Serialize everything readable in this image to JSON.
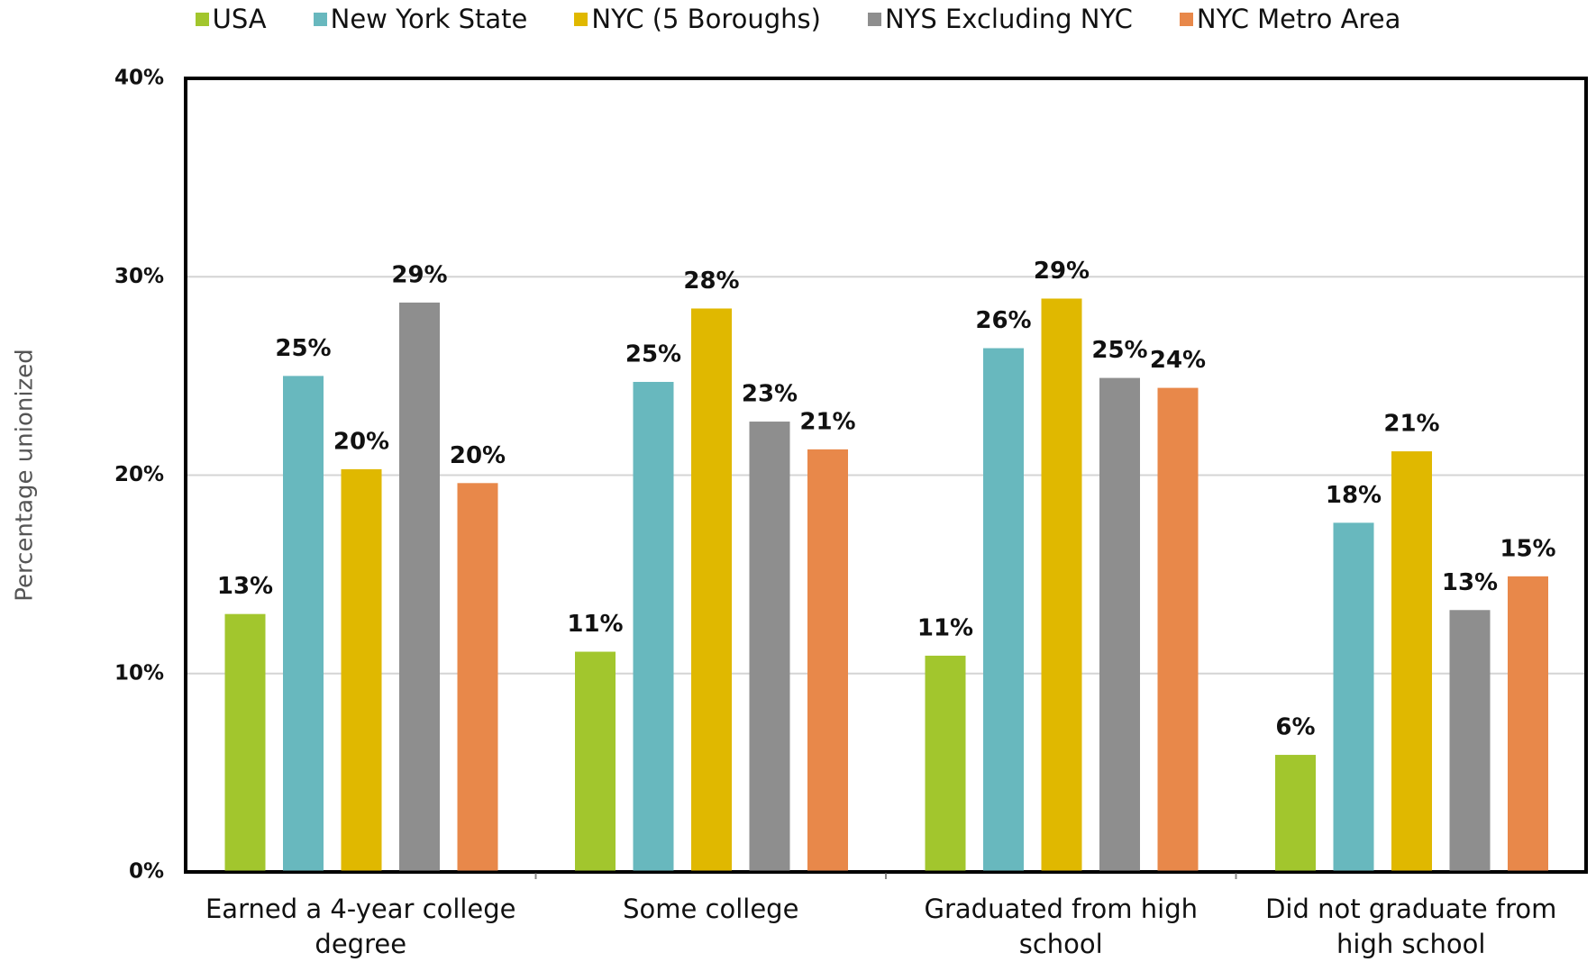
{
  "chart_data": {
    "type": "bar",
    "y_label": "Percentage unionized",
    "categories": [
      "Earned a 4-year college degree",
      "Some college",
      "Graduated from high school",
      "Did not graduate from high school"
    ],
    "series": [
      {
        "name": "USA",
        "color": "#a2c62d",
        "values": [
          13.0,
          11.1,
          10.9,
          5.9
        ],
        "value_labels": [
          "13%",
          "11%",
          "11%",
          "6%"
        ]
      },
      {
        "name": "New York State",
        "color": "#68b8be",
        "values": [
          25.0,
          24.7,
          26.4,
          17.6
        ],
        "value_labels": [
          "25%",
          "25%",
          "26%",
          "18%"
        ]
      },
      {
        "name": "NYC (5 Boroughs)",
        "color": "#e0b800",
        "values": [
          20.3,
          28.4,
          28.9,
          21.2
        ],
        "value_labels": [
          "20%",
          "28%",
          "29%",
          "21%"
        ]
      },
      {
        "name": "NYS Excluding NYC",
        "color": "#8e8e8e",
        "values": [
          28.7,
          22.7,
          24.9,
          13.2
        ],
        "value_labels": [
          "29%",
          "23%",
          "25%",
          "13%"
        ]
      },
      {
        "name": "NYC Metro Area",
        "color": "#e8884a",
        "values": [
          19.6,
          21.3,
          24.4,
          14.9
        ],
        "value_labels": [
          "20%",
          "21%",
          "24%",
          "15%"
        ]
      }
    ],
    "ylim": [
      0,
      40
    ],
    "yticks": [
      {
        "value": 0,
        "label": "0%"
      },
      {
        "value": 10,
        "label": "10%"
      },
      {
        "value": 20,
        "label": "20%"
      },
      {
        "value": 30,
        "label": "30%"
      },
      {
        "value": 40,
        "label": "40%"
      }
    ],
    "grid": true,
    "legend": "top"
  }
}
